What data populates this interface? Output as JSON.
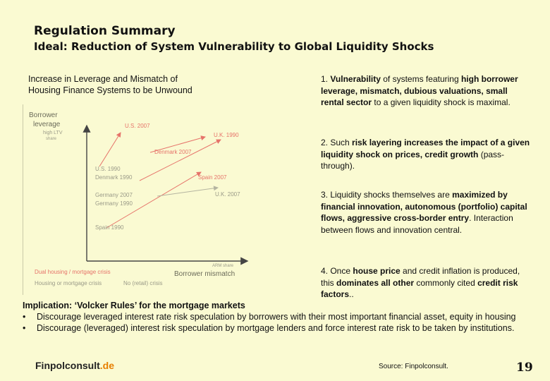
{
  "header": {
    "title": "Regulation Summary",
    "subtitle": "Ideal: Reduction of System Vulnerability to Global Liquidity Shocks"
  },
  "left": {
    "caption_line1": "Increase in Leverage and Mismatch of",
    "caption_line2": "Housing Finance Systems to be Unwound"
  },
  "diagram": {
    "y_axis_label_1": "Borrower",
    "y_axis_label_2": "leverage",
    "y_sub_1": "high LTV",
    "y_sub_2": "share",
    "x_axis_label": "Borrower mismatch",
    "x_sub": "ARM share",
    "labels": {
      "us2007": "U.S. 2007",
      "uk1990": "U.K. 1990",
      "denmark2007": "Denmark 2007",
      "us1990": "U.S. 1990",
      "denmark1990": "Denmark 1990",
      "spain2007": "Spain 2007",
      "germany2007": "Germany 2007",
      "germany1990": "Germany 1990",
      "uk2007": "U.K. 2007",
      "spain1990": "Spain 1990"
    },
    "legend": {
      "dual": "Dual housing / mortgage crisis",
      "housing_or_mortgage": "Housing or mortgage crisis",
      "no_retail": "No (retail) crisis"
    },
    "colors": {
      "red": "#e6736a",
      "grey": "#b4b4a0",
      "dark": "#6b6b5a"
    }
  },
  "points": {
    "p1_num": "1. ",
    "p1_b1": "Vulnerability",
    "p1_t1": " of systems featuring ",
    "p1_b2": "high borrower leverage, mismatch, dubious valuations, small rental sector",
    "p1_t2": "  to a given liquidity shock is maximal.",
    "p2_t1": "2. Such ",
    "p2_b1": "risk layering increases the impact of a given liquidity shock on prices, credit growth",
    "p2_t2": " (pass-through).",
    "p3_t1": "3. Liquidity shocks themselves are ",
    "p3_b1": "maximized by financial innovation, autonomous (portfolio) capital flows, aggressive cross-border entry",
    "p3_t2": ". Interaction between flows and innovation central.",
    "p4_t1": "4. Once ",
    "p4_b1": "house price",
    "p4_t2": " and credit inflation is produced, this ",
    "p4_b2": "dominates all other",
    "p4_t3": " commonly cited ",
    "p4_b3": "credit risk factors",
    "p4_t4": ".."
  },
  "implication": {
    "heading": "Implication: ‘Volcker Rules’ for the mortgage markets",
    "bullet_char": "•",
    "bullet1": "Discourage leveraged interest rate risk speculation by borrowers with their most important financial asset, equity in housing",
    "bullet2": "Discourage (leveraged) interest risk speculation by mortgage lenders and force interest rate risk to be taken by institutions."
  },
  "footer": {
    "brand_name": "Finpolconsult",
    "brand_tld": ".de",
    "source": "Source: Finpolconsult.",
    "page": "19"
  }
}
